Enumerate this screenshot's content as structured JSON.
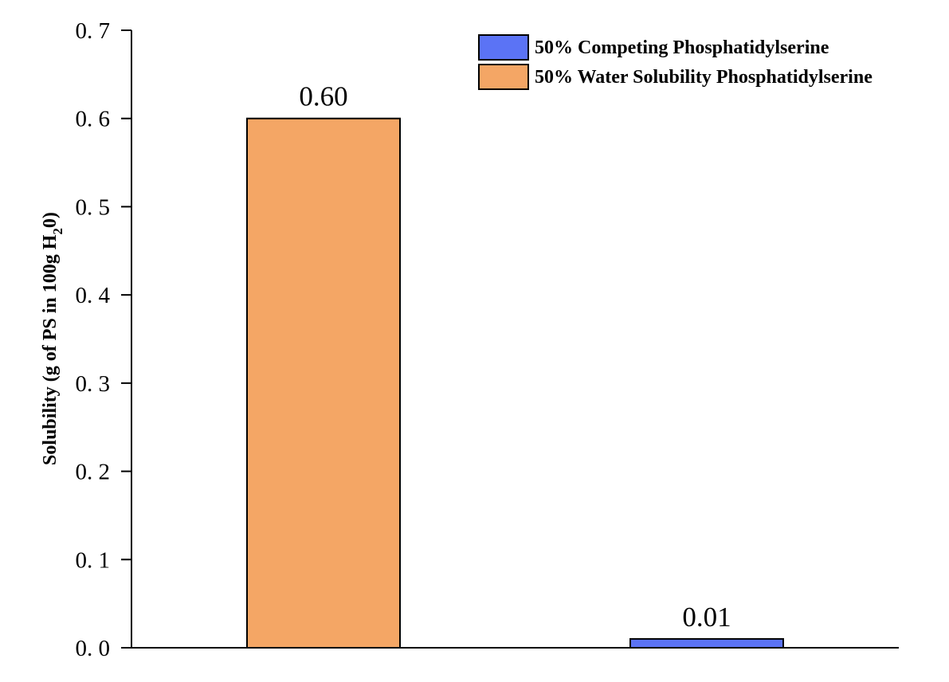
{
  "chart_data": {
    "type": "bar",
    "categories": [
      "",
      ""
    ],
    "series": [
      {
        "name": "50% Water Solubility Phosphatidylserine",
        "color": "#F4A665",
        "values": [
          0.6,
          null
        ]
      },
      {
        "name": "50% Competing Phosphatidylserine",
        "color": "#5B73F5",
        "values": [
          null,
          0.01
        ]
      }
    ],
    "data_labels": [
      "0.60",
      "0.01"
    ],
    "title": "",
    "xlabel": "",
    "ylabel": {
      "main": "Solubility (g of PS in 100g H",
      "sub1": "2",
      "mid": "0",
      "end": ")"
    },
    "ylim": [
      0,
      0.7
    ],
    "yticks": [
      {
        "value": 0.0,
        "label": "0. 0"
      },
      {
        "value": 0.1,
        "label": "0. 1"
      },
      {
        "value": 0.2,
        "label": "0. 2"
      },
      {
        "value": 0.3,
        "label": "0. 3"
      },
      {
        "value": 0.4,
        "label": "0. 4"
      },
      {
        "value": 0.5,
        "label": "0. 5"
      },
      {
        "value": 0.6,
        "label": "0. 6"
      },
      {
        "value": 0.7,
        "label": "0. 7"
      }
    ],
    "legend": {
      "position": "top-right",
      "items": [
        {
          "label": "50% Competing Phosphatidylserine",
          "color": "#5B73F5"
        },
        {
          "label": "50% Water Solubility Phosphatidylserine",
          "color": "#F4A665"
        }
      ]
    },
    "grid": false
  }
}
